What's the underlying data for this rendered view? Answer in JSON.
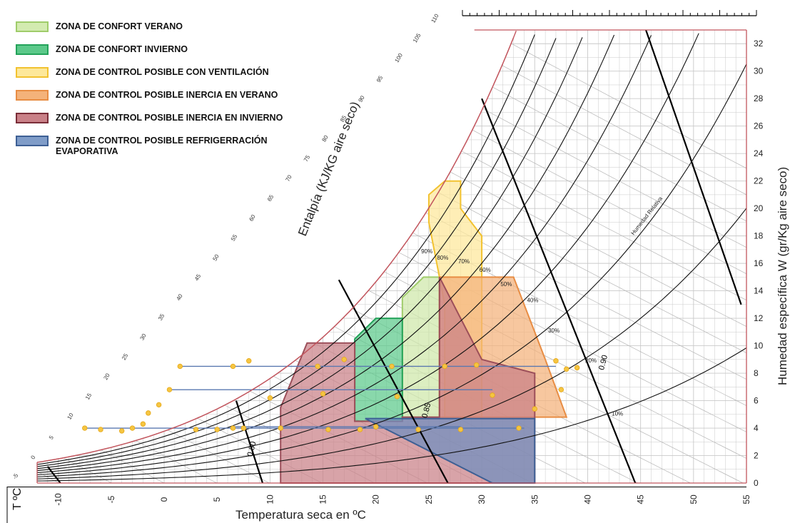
{
  "chart_data": {
    "type": "area",
    "title": "",
    "xlabel": "Temperatura seca en ºC",
    "xlabel_prefix": "T ºC",
    "ylabel": "Humedad específica W (gr/Kg aire seco)",
    "enthalpy_label": "Entalpía (KJ/KG aire seco)",
    "xlim": [
      -12,
      55
    ],
    "ylim": [
      0,
      33
    ],
    "x_ticks": [
      -10,
      -5,
      0,
      5,
      10,
      15,
      20,
      25,
      30,
      35,
      40,
      45,
      50,
      55
    ],
    "y_ticks": [
      0,
      2,
      4,
      6,
      8,
      10,
      12,
      14,
      16,
      18,
      20,
      22,
      24,
      26,
      28,
      30,
      32
    ],
    "enthalpy_ticks": [
      -5,
      0,
      5,
      10,
      15,
      20,
      25,
      30,
      35,
      40,
      45,
      50,
      55,
      60,
      65,
      70,
      75,
      80,
      85,
      90,
      95,
      100,
      105,
      110
    ],
    "relative_humidity_curves": [
      10,
      20,
      30,
      40,
      50,
      60,
      70,
      80,
      90,
      100
    ],
    "rh_labels": [
      "10%",
      "20%",
      "30%",
      "40%",
      "50%",
      "60%",
      "70%",
      "80%",
      "90%"
    ],
    "rh_axis_label": "Humedad Relativa",
    "specific_volume_labels": [
      "0.80",
      "0.85",
      "0.90"
    ],
    "grid": true,
    "legend_position": "top-left",
    "zones": [
      {
        "name": "ZONA DE CONFORT VERANO",
        "fill": "#cfe8a9",
        "stroke": "#9fcc6a",
        "polygon": [
          [
            22.5,
            4.8
          ],
          [
            22.5,
            13.5
          ],
          [
            24.5,
            15
          ],
          [
            26,
            15
          ],
          [
            26,
            4.8
          ]
        ]
      },
      {
        "name": "ZONA DE CONFORT INVIERNO",
        "fill": "#5cc98a",
        "stroke": "#24a35a",
        "polygon": [
          [
            18,
            4.5
          ],
          [
            18,
            10.5
          ],
          [
            20,
            12
          ],
          [
            22.5,
            12
          ],
          [
            22.5,
            4.5
          ]
        ]
      },
      {
        "name": "ZONA DE CONTROL POSIBLE CON VENTILACIÓN",
        "fill": "#fde89a",
        "stroke": "#f2c230",
        "polygon": [
          [
            26.5,
            4.8
          ],
          [
            26.5,
            13
          ],
          [
            25,
            19
          ],
          [
            25,
            21
          ],
          [
            26.5,
            22
          ],
          [
            28,
            22
          ],
          [
            28,
            20
          ],
          [
            30,
            18
          ],
          [
            30,
            4.8
          ]
        ]
      },
      {
        "name": "ZONA DE CONTROL POSIBLE INERCIA EN VERANO",
        "fill": "#f4b27a",
        "stroke": "#e88d44",
        "polygon": [
          [
            26,
            4.8
          ],
          [
            26,
            15
          ],
          [
            33,
            15
          ],
          [
            36,
            9
          ],
          [
            38,
            4.8
          ]
        ]
      },
      {
        "name": "ZONA DE CONTROL POSIBLE INERCIA EN INVIERNO",
        "fill": "#c98087",
        "stroke": "#9c4f5a",
        "polygon": [
          [
            11,
            0
          ],
          [
            11,
            5.5
          ],
          [
            13.5,
            10.2
          ],
          [
            18,
            10.2
          ],
          [
            18,
            4.5
          ],
          [
            22.5,
            4.5
          ],
          [
            22.5,
            4.8
          ],
          [
            26,
            4.8
          ],
          [
            26,
            15
          ],
          [
            30,
            9
          ],
          [
            35,
            8
          ],
          [
            35,
            0
          ]
        ]
      },
      {
        "name": "ZONA DE CONTROL POSIBLE REFRIGERRACIÓN EVAPORATIVA",
        "fill": "#6f8fbf",
        "stroke": "#3d5f94",
        "polygon": [
          [
            19,
            4.7
          ],
          [
            31,
            0
          ],
          [
            35,
            0
          ],
          [
            35,
            4.7
          ]
        ]
      }
    ],
    "climate_points": [
      {
        "x": -7.5,
        "y": 4.0
      },
      {
        "x": -6,
        "y": 3.9
      },
      {
        "x": -4,
        "y": 3.8
      },
      {
        "x": -3,
        "y": 4.0
      },
      {
        "x": -2,
        "y": 4.3
      },
      {
        "x": -1.5,
        "y": 5.1
      },
      {
        "x": -0.5,
        "y": 5.7
      },
      {
        "x": 0.5,
        "y": 6.8
      },
      {
        "x": 1.5,
        "y": 8.5
      },
      {
        "x": 3,
        "y": 3.9
      },
      {
        "x": 5,
        "y": 3.9
      },
      {
        "x": 6.5,
        "y": 4.0
      },
      {
        "x": 6.5,
        "y": 8.5
      },
      {
        "x": 7.5,
        "y": 4.0
      },
      {
        "x": 8,
        "y": 8.9
      },
      {
        "x": 10,
        "y": 6.2
      },
      {
        "x": 11,
        "y": 4.0
      },
      {
        "x": 14.5,
        "y": 8.5
      },
      {
        "x": 15,
        "y": 6.5
      },
      {
        "x": 15.5,
        "y": 3.9
      },
      {
        "x": 17,
        "y": 9.0
      },
      {
        "x": 18.5,
        "y": 3.9
      },
      {
        "x": 20,
        "y": 4.1
      },
      {
        "x": 21.5,
        "y": 8.5
      },
      {
        "x": 22,
        "y": 6.3
      },
      {
        "x": 24,
        "y": 3.9
      },
      {
        "x": 26.5,
        "y": 8.5
      },
      {
        "x": 28,
        "y": 3.9
      },
      {
        "x": 29.5,
        "y": 8.6
      },
      {
        "x": 31,
        "y": 6.4
      },
      {
        "x": 33.5,
        "y": 4.0
      },
      {
        "x": 35,
        "y": 5.4
      },
      {
        "x": 37,
        "y": 8.9
      },
      {
        "x": 37.5,
        "y": 6.8
      },
      {
        "x": 38,
        "y": 8.3
      },
      {
        "x": 39,
        "y": 8.4
      }
    ],
    "climate_lines": [
      {
        "x1": 1.5,
        "y1": 8.5,
        "x2": 37,
        "y2": 8.5
      },
      {
        "x1": -7.5,
        "y1": 4.0,
        "x2": 34,
        "y2": 4.0
      },
      {
        "x1": 0.5,
        "y1": 6.8,
        "x2": 31,
        "y2": 6.8
      },
      {
        "x1": 6.5,
        "y1": 4.1,
        "x2": 28,
        "y2": 4.1
      }
    ]
  },
  "legend": {
    "items": [
      {
        "label": "ZONA DE CONFORT VERANO",
        "fill": "#d3ebb0",
        "stroke": "#9fcc6a"
      },
      {
        "label": "ZONA DE CONFORT INVIERNO",
        "fill": "#5cc98a",
        "stroke": "#24a35a"
      },
      {
        "label": "ZONA DE CONTROL POSIBLE CON VENTILACIÓN",
        "fill": "#fde89a",
        "stroke": "#f2c230"
      },
      {
        "label": "ZONA DE CONTROL POSIBLE INERCIA EN VERANO",
        "fill": "#f4b27a",
        "stroke": "#e88d44"
      },
      {
        "label": "ZONA DE CONTROL POSIBLE INERCIA EN INVIERNO",
        "fill": "#c98087",
        "stroke": "#7a2d38"
      },
      {
        "label": "ZONA DE CONTROL POSIBLE REFRIGERRACIÓN EVAPORATIVA",
        "fill": "#7f9cc8",
        "stroke": "#3d5f94"
      }
    ]
  }
}
